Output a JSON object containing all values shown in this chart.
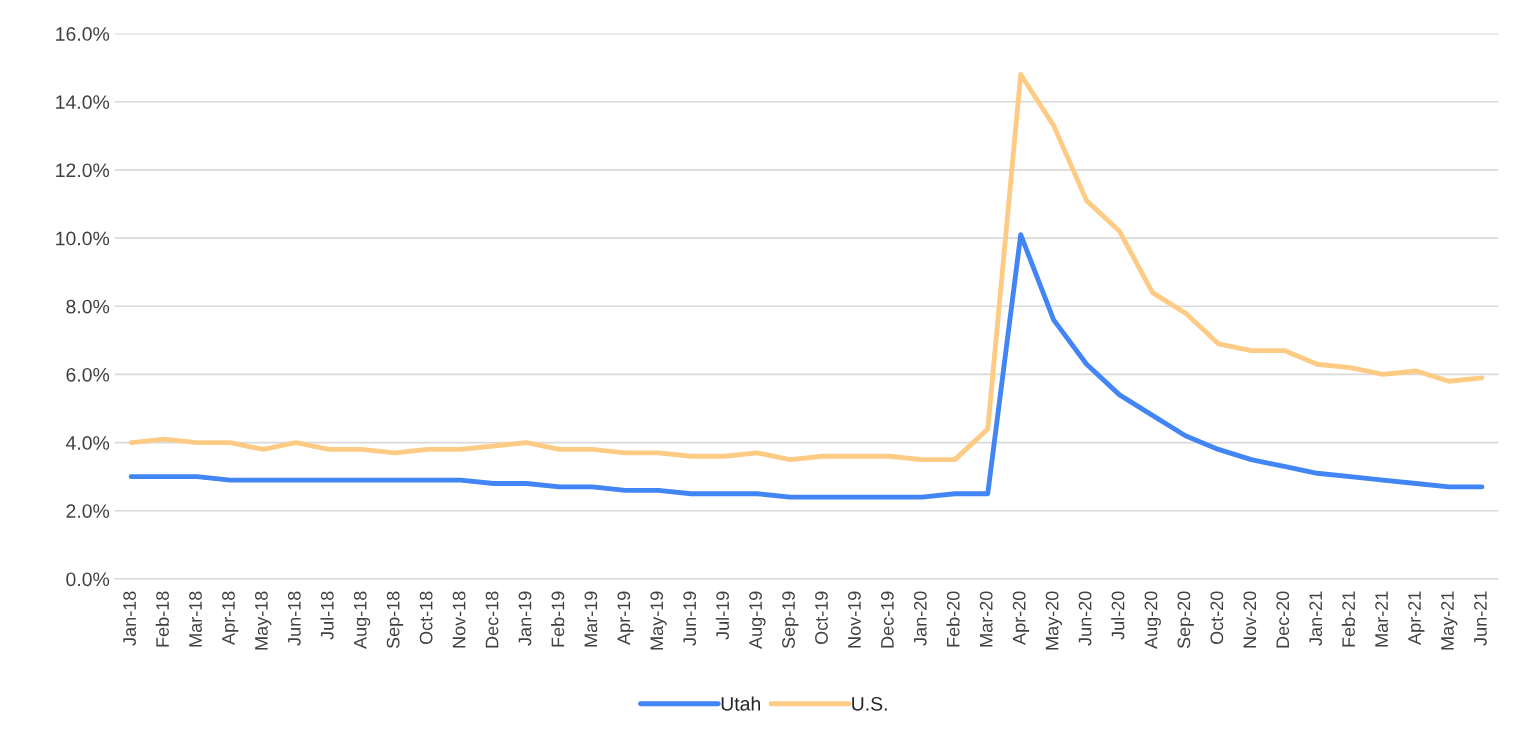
{
  "chart_data": {
    "type": "line",
    "categories": [
      "Jan-18",
      "Feb-18",
      "Mar-18",
      "Apr-18",
      "May-18",
      "Jun-18",
      "Jul-18",
      "Aug-18",
      "Sep-18",
      "Oct-18",
      "Nov-18",
      "Dec-18",
      "Jan-19",
      "Feb-19",
      "Mar-19",
      "Apr-19",
      "May-19",
      "Jun-19",
      "Jul-19",
      "Aug-19",
      "Sep-19",
      "Oct-19",
      "Nov-19",
      "Dec-19",
      "Jan-20",
      "Feb-20",
      "Mar-20",
      "Apr-20",
      "May-20",
      "Jun-20",
      "Jul-20",
      "Aug-20",
      "Sep-20",
      "Oct-20",
      "Nov-20",
      "Dec-20",
      "Jan-21",
      "Feb-21",
      "Mar-21",
      "Apr-21",
      "May-21",
      "Jun-21"
    ],
    "series": [
      {
        "name": "Utah",
        "color": "#4285f4",
        "values": [
          3.0,
          3.0,
          3.0,
          2.9,
          2.9,
          2.9,
          2.9,
          2.9,
          2.9,
          2.9,
          2.9,
          2.8,
          2.8,
          2.7,
          2.7,
          2.6,
          2.6,
          2.5,
          2.5,
          2.5,
          2.4,
          2.4,
          2.4,
          2.4,
          2.4,
          2.5,
          2.5,
          10.1,
          7.6,
          6.3,
          5.4,
          4.8,
          4.2,
          3.8,
          3.5,
          3.3,
          3.1,
          3.0,
          2.9,
          2.8,
          2.7,
          2.7
        ]
      },
      {
        "name": "U.S.",
        "color": "#fecb85",
        "values": [
          4.0,
          4.1,
          4.0,
          4.0,
          3.8,
          4.0,
          3.8,
          3.8,
          3.7,
          3.8,
          3.8,
          3.9,
          4.0,
          3.8,
          3.8,
          3.7,
          3.7,
          3.6,
          3.6,
          3.7,
          3.5,
          3.6,
          3.6,
          3.6,
          3.5,
          3.5,
          4.4,
          14.8,
          13.3,
          11.1,
          10.2,
          8.4,
          7.8,
          6.9,
          6.7,
          6.7,
          6.3,
          6.2,
          6.0,
          6.1,
          5.8,
          5.9
        ]
      }
    ],
    "ylim": [
      0,
      16
    ],
    "yticks": [
      {
        "value": 0,
        "label": "0.0%"
      },
      {
        "value": 2,
        "label": "2.0%"
      },
      {
        "value": 4,
        "label": "4.0%"
      },
      {
        "value": 6,
        "label": "6.0%"
      },
      {
        "value": 8,
        "label": "8.0%"
      },
      {
        "value": 10,
        "label": "10.0%"
      },
      {
        "value": 12,
        "label": "12.0%"
      },
      {
        "value": 14,
        "label": "14.0%"
      },
      {
        "value": 16,
        "label": "16.0%"
      }
    ],
    "grid": "y",
    "legend": "bottom",
    "marker": "none",
    "line_style": "solid"
  }
}
